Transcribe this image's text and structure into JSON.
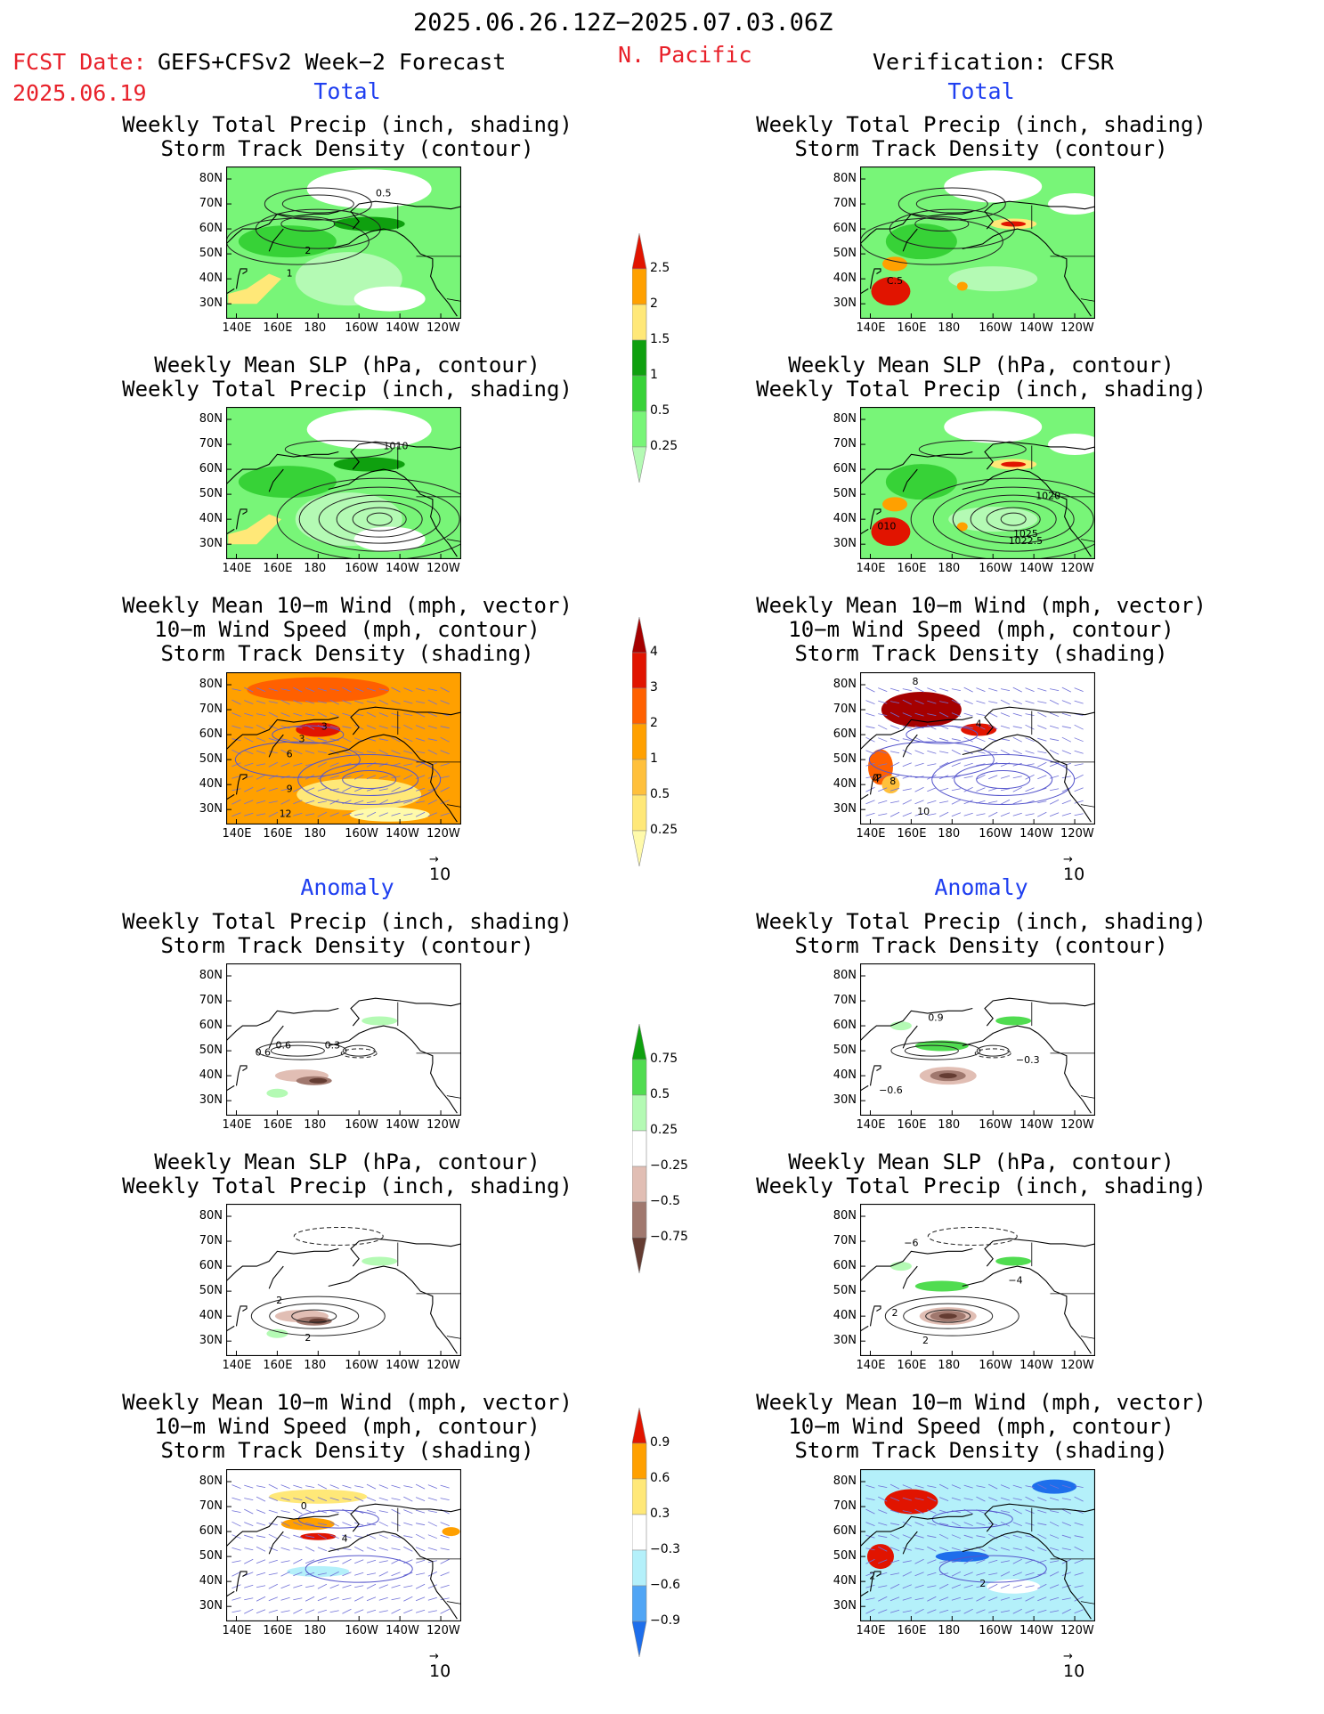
{
  "header": {
    "period": "2025.06.26.12Z−2025.07.03.06Z",
    "fcst_label": "FCST Date:",
    "fcst_date": "2025.06.19",
    "model": "GEFS+CFSv2 Week−2 Forecast",
    "region": "N. Pacific",
    "verification": "Verification: CFSR"
  },
  "sections": {
    "total": "Total",
    "anomaly": "Anomaly"
  },
  "panel_titles": {
    "precip_storm": "Weekly Total Precip (inch, shading)\nStorm Track Density (contour)",
    "slp_precip": "Weekly Mean SLP (hPa, contour)\nWeekly Total Precip (inch, shading)",
    "wind_storm": "Weekly Mean 10−m Wind (mph, vector)\n10−m Wind Speed (mph, contour)\nStorm Track Density (shading)"
  },
  "axes": {
    "lat_ticks": [
      "80N",
      "70N",
      "60N",
      "50N",
      "40N",
      "30N"
    ],
    "lon_ticks": [
      "140E",
      "160E",
      "180",
      "160W",
      "140W",
      "120W"
    ]
  },
  "vector_reference": "10",
  "colors": {
    "precip": [
      "#b4fab4",
      "#78f578",
      "#37d237",
      "#0fa00f",
      "#ffe878",
      "#ffa000",
      "#e11400"
    ],
    "storm": [
      "#fffaaa",
      "#ffe878",
      "#ffc03c",
      "#ffa000",
      "#ff6000",
      "#e11400",
      "#a50000"
    ],
    "precip_anom": [
      "#643c32",
      "#a0786e",
      "#e1beb4",
      "#ffffff",
      "#b4fab4",
      "#50dc50",
      "#0fa00f"
    ],
    "storm_anom": [
      "#1e6eeb",
      "#50a5f5",
      "#b4f0fa",
      "#ffffff",
      "#ffe878",
      "#ffa000",
      "#e11400"
    ]
  },
  "chart_data": [
    {
      "type": "colorbar",
      "name": "total_precip",
      "levels": [
        "0.25",
        "0.5",
        "1",
        "1.5",
        "2",
        "2.5"
      ]
    },
    {
      "type": "colorbar",
      "name": "storm_density",
      "levels": [
        "0.25",
        "0.5",
        "1",
        "2",
        "3",
        "4"
      ]
    },
    {
      "type": "colorbar",
      "name": "precip_anomaly",
      "levels": [
        "−0.75",
        "−0.5",
        "−0.25",
        "0.25",
        "0.5",
        "0.75"
      ]
    },
    {
      "type": "colorbar",
      "name": "storm_anomaly",
      "levels": [
        "−0.9",
        "−0.6",
        "−0.3",
        "0.3",
        "0.6",
        "0.9"
      ]
    },
    {
      "type": "map",
      "panel": "fcst_total_precip",
      "contour_labels": [
        {
          "text": "0.5",
          "lon": 212,
          "lat": 73
        },
        {
          "text": "2",
          "lon": 175,
          "lat": 50
        },
        {
          "text": "1",
          "lon": 166,
          "lat": 41
        }
      ]
    },
    {
      "type": "map",
      "panel": "fcst_total_slp",
      "contour_labels": [
        {
          "text": "1010",
          "lon": 218,
          "lat": 68
        }
      ]
    },
    {
      "type": "map",
      "panel": "fcst_total_wind",
      "contour_labels": [
        {
          "text": "3",
          "lon": 183,
          "lat": 62
        },
        {
          "text": "3",
          "lon": 172,
          "lat": 57
        },
        {
          "text": "6",
          "lon": 166,
          "lat": 51
        },
        {
          "text": "9",
          "lon": 166,
          "lat": 37
        },
        {
          "text": "12",
          "lon": 164,
          "lat": 27
        }
      ]
    },
    {
      "type": "map",
      "panel": "ver_total_precip",
      "contour_labels": [
        {
          "text": "C.5",
          "lon": 152,
          "lat": 38
        }
      ]
    },
    {
      "type": "map",
      "panel": "ver_total_slp",
      "contour_labels": [
        {
          "text": "1020",
          "lon": 227,
          "lat": 48
        },
        {
          "text": "010",
          "lon": 148,
          "lat": 36
        },
        {
          "text": "1025",
          "lon": 216,
          "lat": 33
        },
        {
          "text": "1022.5",
          "lon": 216,
          "lat": 30
        }
      ]
    },
    {
      "type": "map",
      "panel": "ver_total_wind",
      "contour_labels": [
        {
          "text": "8",
          "lon": 162,
          "lat": 80
        },
        {
          "text": "4",
          "lon": 193,
          "lat": 63
        },
        {
          "text": "4",
          "lon": 143,
          "lat": 41
        },
        {
          "text": "8",
          "lon": 151,
          "lat": 40
        },
        {
          "text": "10",
          "lon": 166,
          "lat": 28
        }
      ]
    },
    {
      "type": "map",
      "panel": "fcst_anom_precip",
      "contour_labels": [
        {
          "text": "0.3",
          "lon": 187,
          "lat": 51
        },
        {
          "text": "0.6",
          "lon": 163,
          "lat": 51
        },
        {
          "text": "0.6",
          "lon": 153,
          "lat": 48
        }
      ]
    },
    {
      "type": "map",
      "panel": "fcst_anom_slp",
      "contour_labels": [
        {
          "text": "2",
          "lon": 161,
          "lat": 45
        },
        {
          "text": "2",
          "lon": 175,
          "lat": 30
        }
      ]
    },
    {
      "type": "map",
      "panel": "fcst_anom_wind",
      "contour_labels": [
        {
          "text": "0",
          "lon": 173,
          "lat": 69
        },
        {
          "text": "4",
          "lon": 193,
          "lat": 56
        }
      ]
    },
    {
      "type": "map",
      "panel": "ver_anom_precip",
      "contour_labels": [
        {
          "text": "0.9",
          "lon": 172,
          "lat": 62
        },
        {
          "text": "−0.3",
          "lon": 217,
          "lat": 45
        },
        {
          "text": "−0.6",
          "lon": 150,
          "lat": 33
        }
      ]
    },
    {
      "type": "map",
      "panel": "ver_anom_slp",
      "contour_labels": [
        {
          "text": "−6",
          "lon": 160,
          "lat": 68
        },
        {
          "text": "2",
          "lon": 152,
          "lat": 40
        },
        {
          "text": "−4",
          "lon": 211,
          "lat": 53
        },
        {
          "text": "2",
          "lon": 167,
          "lat": 29
        }
      ]
    },
    {
      "type": "map",
      "panel": "ver_anom_wind",
      "contour_labels": [
        {
          "text": "2",
          "lon": 195,
          "lat": 38
        },
        {
          "text": "2",
          "lon": 141,
          "lat": 41
        }
      ]
    }
  ]
}
